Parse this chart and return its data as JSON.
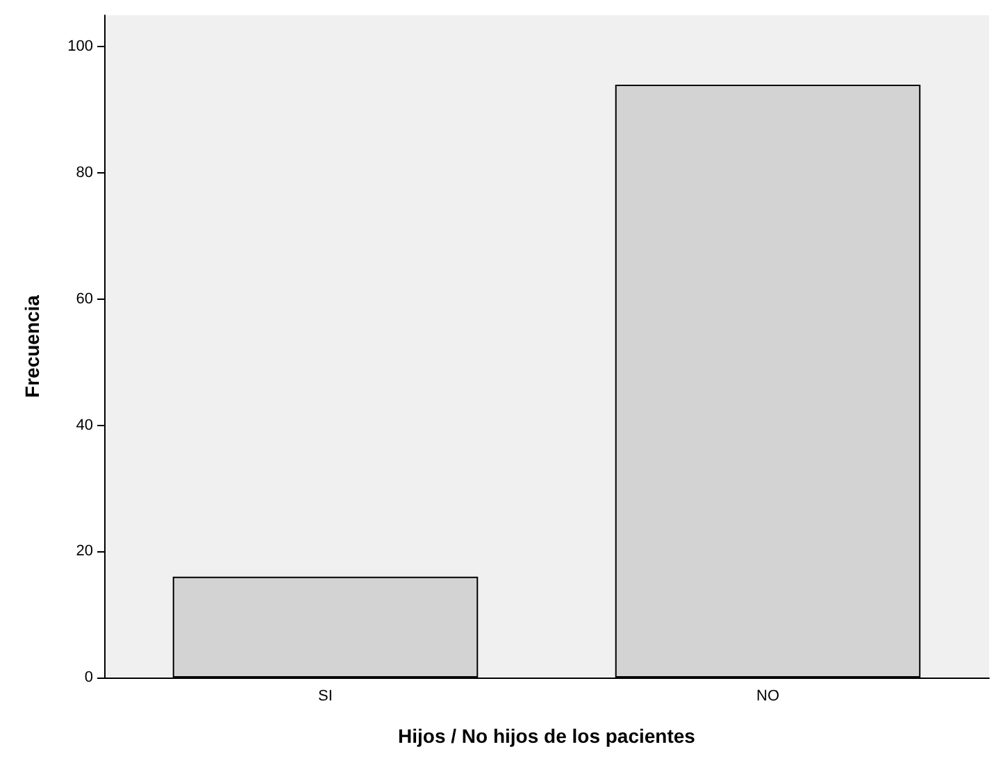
{
  "chart_data": {
    "type": "bar",
    "xlabel": "Hijos / No hijos de los pacientes",
    "ylabel": "Frecuencia",
    "categories": [
      "SI",
      "NO"
    ],
    "values": [
      16,
      94
    ],
    "color": "#d3d3d3",
    "ylim": [
      0,
      105
    ],
    "yticks": [
      0,
      20,
      40,
      60,
      80,
      100
    ]
  }
}
